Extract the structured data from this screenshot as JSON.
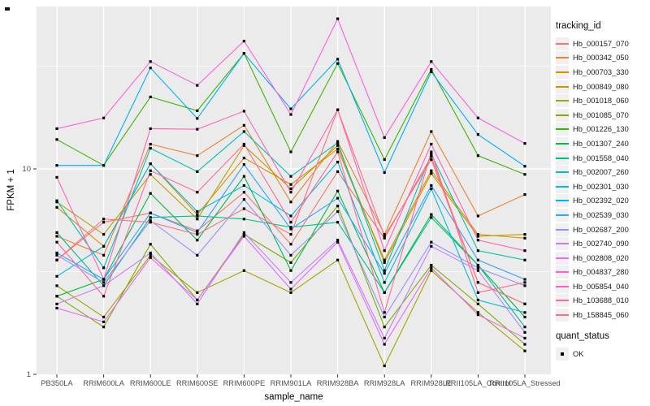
{
  "figure": {
    "y_axis": {
      "title": "FPKM + 1"
    },
    "x_axis": {
      "title": "sample_name"
    },
    "legend": {
      "tracking_title": "tracking_id",
      "quant_title": "quant_status",
      "quant_ok_label": "OK"
    },
    "colors": {
      "panel_bg": "#EBEBEB",
      "grid_major": "#FFFFFF",
      "grid_minor": "#F7F7F7",
      "axis_text": "#4D4D4D",
      "tick_mark": "#333333",
      "point": "#000000"
    }
  },
  "chart_data": {
    "type": "line",
    "title": "",
    "xlabel": "sample_name",
    "ylabel": "FPKM + 1",
    "y_scale": "log10",
    "ylim": [
      1,
      60
    ],
    "y_ticks": [
      1,
      10
    ],
    "y_tick_labels": [
      "1",
      "10"
    ],
    "y_minor_breaks": [
      3.1623,
      31.623
    ],
    "grid": true,
    "legend_position": "right",
    "point_shape": "black-square",
    "quant_status": {
      "label": "OK",
      "value": "OK"
    },
    "categories": [
      "PB350LA",
      "RRIM600LA",
      "RRIM600LE",
      "RRIM600SE",
      "RRIM600PE",
      "RRIM901LA",
      "RRIM928BA",
      "RRIM928LA",
      "RRIM928LE",
      "RRII105LA_Control",
      "RRII105LA_Stressed"
    ],
    "series": [
      {
        "name": "Hb_000157_070",
        "color": "#F8766D",
        "values": [
          3.6,
          5.5,
          6.1,
          5.0,
          7.7,
          4.3,
          9.7,
          4.6,
          11.5,
          2.8,
          2.2
        ]
      },
      {
        "name": "Hb_000342_050",
        "color": "#EA8331",
        "values": [
          4.7,
          3.8,
          13.2,
          11.6,
          16.3,
          6.9,
          13.6,
          4.8,
          15.2,
          5.9,
          7.5
        ]
      },
      {
        "name": "Hb_000703_330",
        "color": "#D89000",
        "values": [
          6.5,
          4.2,
          10.6,
          6.0,
          11.3,
          8.4,
          12.5,
          3.6,
          9.8,
          4.8,
          4.6
        ]
      },
      {
        "name": "Hb_000849_080",
        "color": "#C09B00",
        "values": [
          6.9,
          4.8,
          9.4,
          5.7,
          13.0,
          8.0,
          13.0,
          3.5,
          9.5,
          4.7,
          4.8
        ]
      },
      {
        "name": "Hb_001018_060",
        "color": "#A3A500",
        "values": [
          2.7,
          1.9,
          3.8,
          2.5,
          3.2,
          2.5,
          3.6,
          1.1,
          3.2,
          2.0,
          1.3
        ]
      },
      {
        "name": "Hb_001085_070",
        "color": "#7CAE00",
        "values": [
          2.4,
          1.7,
          4.3,
          2.3,
          4.8,
          3.5,
          6.6,
          1.7,
          3.4,
          2.2,
          1.4
        ]
      },
      {
        "name": "Hb_001226_130",
        "color": "#39B600",
        "values": [
          13.9,
          10.4,
          22.4,
          19.2,
          36.5,
          12.1,
          32.6,
          11.1,
          30.5,
          11.6,
          9.4
        ]
      },
      {
        "name": "Hb_001307_240",
        "color": "#00BB4E",
        "values": [
          2.4,
          2.9,
          7.6,
          4.5,
          9.2,
          3.2,
          7.8,
          2.5,
          6.0,
          3.4,
          1.9
        ]
      },
      {
        "name": "Hb_001558_040",
        "color": "#00C087",
        "values": [
          4.9,
          2.7,
          5.8,
          5.9,
          5.7,
          5.2,
          5.5,
          2.5,
          5.8,
          3.4,
          1.7
        ]
      },
      {
        "name": "Hb_002007_260",
        "color": "#00C0B2",
        "values": [
          7.0,
          3.3,
          12.6,
          9.7,
          15.2,
          9.2,
          13.4,
          3.2,
          11.8,
          4.0,
          3.6
        ]
      },
      {
        "name": "Hb_002301_030",
        "color": "#00BCD8",
        "values": [
          3.0,
          4.2,
          10.6,
          6.2,
          8.3,
          5.9,
          10.8,
          2.8,
          8.0,
          2.3,
          2.0
        ]
      },
      {
        "name": "Hb_002392_020",
        "color": "#00B0F6",
        "values": [
          10.4,
          10.4,
          31.0,
          17.6,
          36.5,
          19.6,
          34.2,
          9.6,
          29.7,
          14.7,
          10.3
        ]
      },
      {
        "name": "Hb_002539_030",
        "color": "#35A2FF",
        "values": [
          3.9,
          2.9,
          6.1,
          4.9,
          10.5,
          5.1,
          7.2,
          3.1,
          8.3,
          3.6,
          2.9
        ]
      },
      {
        "name": "Hb_002687_200",
        "color": "#9590FF",
        "values": [
          3.8,
          2.8,
          5.6,
          3.8,
          7.1,
          3.8,
          6.2,
          1.9,
          4.4,
          3.3,
          2.7
        ]
      },
      {
        "name": "Hb_002740_090",
        "color": "#C77CFF",
        "values": [
          2.2,
          2.7,
          3.9,
          2.2,
          4.9,
          2.8,
          4.5,
          1.5,
          4.2,
          3.2,
          1.6
        ]
      },
      {
        "name": "Hb_002808_020",
        "color": "#E76BF3",
        "values": [
          2.1,
          1.8,
          3.7,
          2.3,
          4.7,
          2.6,
          4.4,
          1.4,
          3.3,
          1.95,
          1.5
        ]
      },
      {
        "name": "Hb_004837_280",
        "color": "#FA62DB",
        "values": [
          15.7,
          17.7,
          33.3,
          25.5,
          41.9,
          18.4,
          53.8,
          14.2,
          33.3,
          17.7,
          13.3
        ]
      },
      {
        "name": "Hb_005854_040",
        "color": "#FF62BC",
        "values": [
          9.1,
          2.9,
          15.7,
          15.6,
          19.1,
          7.7,
          19.4,
          4.0,
          13.2,
          4.5,
          4.0
        ]
      },
      {
        "name": "Hb_103688_010",
        "color": "#FF6A98",
        "values": [
          4.4,
          2.4,
          9.8,
          7.7,
          13.2,
          5.5,
          12.1,
          2.0,
          12.1,
          2.5,
          2.8
        ]
      },
      {
        "name": "Hb_158845_060",
        "color": "#FC717F",
        "values": [
          3.6,
          5.7,
          5.5,
          4.8,
          6.4,
          4.8,
          19.4,
          4.7,
          11.1,
          2.8,
          2.2
        ]
      }
    ]
  }
}
